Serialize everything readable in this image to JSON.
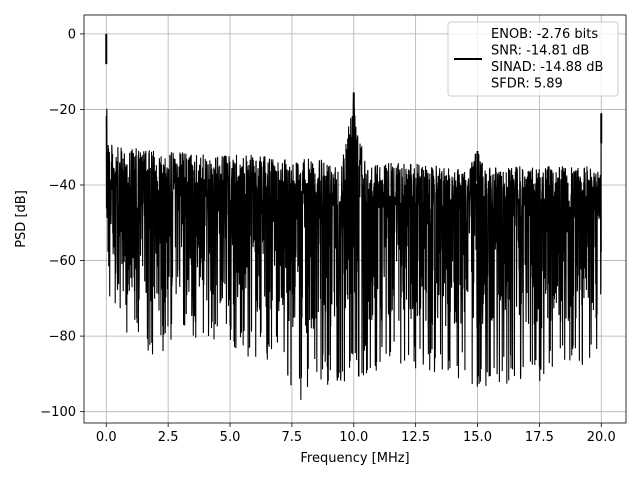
{
  "chart_data": {
    "type": "line",
    "title": "",
    "xlabel": "Frequency [MHz]",
    "ylabel": "PSD [dB]",
    "xlim": [
      -0.9,
      21.0
    ],
    "ylim": [
      -103,
      5
    ],
    "xticks": [
      0.0,
      2.5,
      5.0,
      7.5,
      10.0,
      12.5,
      15.0,
      17.5,
      20.0
    ],
    "xtick_labels": [
      "0.0",
      "2.5",
      "5.0",
      "7.5",
      "10.0",
      "12.5",
      "15.0",
      "17.5",
      "20.0"
    ],
    "yticks": [
      0,
      -20,
      -40,
      -60,
      -80,
      -100
    ],
    "ytick_labels": [
      "0",
      "−20",
      "−40",
      "−60",
      "−80",
      "−100"
    ],
    "grid": true,
    "legend_position": "top-right",
    "series": [
      {
        "color": "#000000",
        "description_points": {
          "x": [
            0.0,
            0.05,
            0.1,
            0.2,
            0.5,
            1.0,
            2.0,
            3.0,
            4.0,
            5.0,
            6.0,
            7.0,
            7.8,
            8.5,
            9.5,
            10.0,
            10.5,
            11.5,
            12.5,
            13.5,
            14.5,
            15.0,
            15.5,
            16.5,
            17.5,
            18.5,
            19.5,
            19.95,
            20.0
          ],
          "y_upper": [
            0,
            -20,
            -27,
            -29,
            -30,
            -30,
            -31,
            -31,
            -32,
            -32,
            -32,
            -33,
            -33,
            -33,
            -34,
            -15.5,
            -34,
            -34,
            -34,
            -35,
            -35,
            -31,
            -35,
            -35,
            -35,
            -35,
            -35,
            -35,
            -21
          ],
          "y_lower": [
            -58,
            -71,
            -74,
            -72,
            -78,
            -80,
            -87,
            -80,
            -82,
            -84,
            -86,
            -88,
            -98,
            -92,
            -94,
            -92,
            -90,
            -88,
            -90,
            -90,
            -92,
            -95,
            -93,
            -93,
            -92,
            -90,
            -88,
            -86,
            -85
          ]
        },
        "peaks": [
          {
            "x": 0.0,
            "y": 0
          },
          {
            "x": 10.0,
            "y": -15.5
          },
          {
            "x": 15.0,
            "y": -31
          },
          {
            "x": 20.0,
            "y": -21
          }
        ]
      }
    ],
    "legend_lines": [
      "ENOB: -2.76 bits",
      "SNR: -14.81 dB",
      "SINAD: -14.88 dB",
      "SFDR: 5.89"
    ]
  }
}
